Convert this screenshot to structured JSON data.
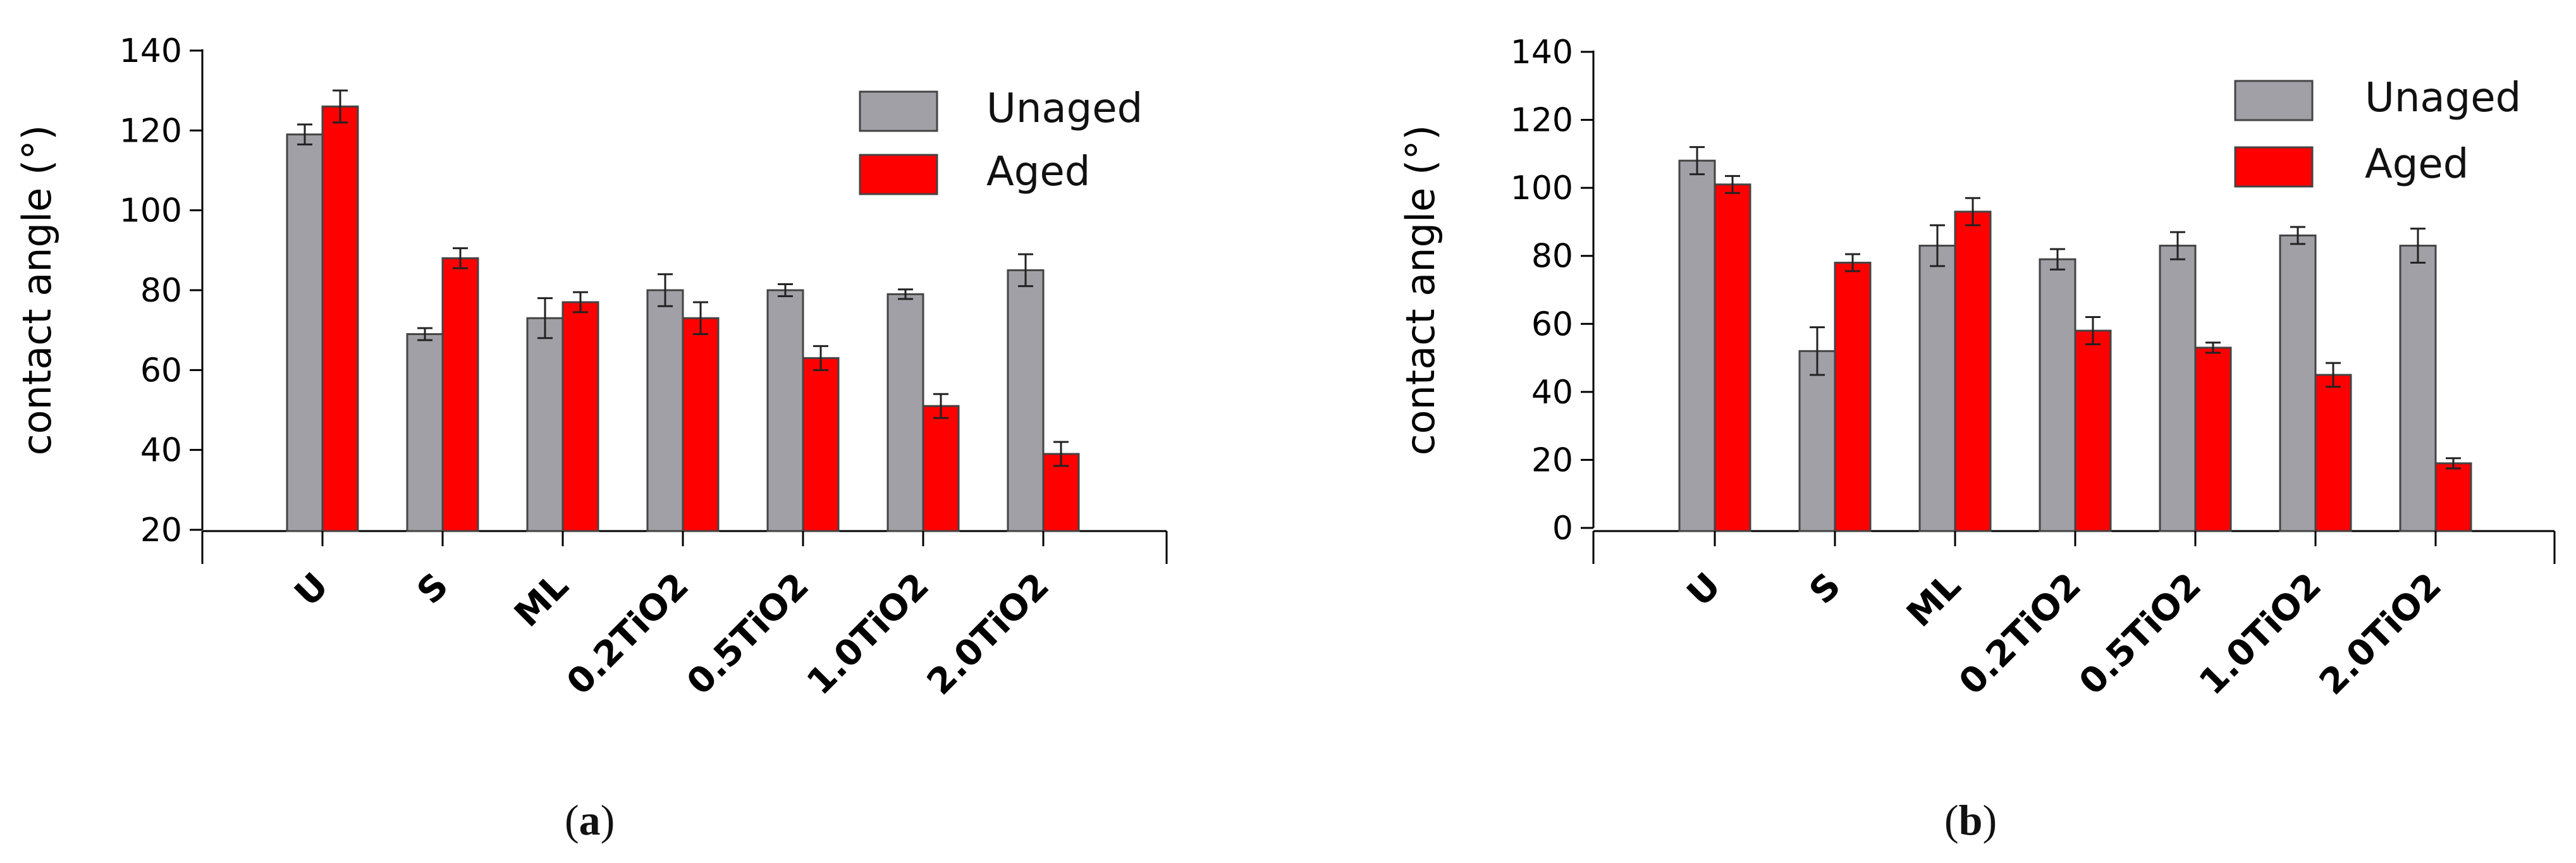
{
  "chart_data": [
    {
      "type": "bar",
      "panel": "(a)",
      "panel_letter": "a",
      "ylabel": "contact angle (°)",
      "ylim": [
        20,
        140
      ],
      "yticks": [
        20,
        40,
        60,
        80,
        100,
        120,
        140
      ],
      "categories": [
        "U",
        "S",
        "ML",
        "0.2TiO2",
        "0.5TiO2",
        "1.0TiO2",
        "2.0TiO2"
      ],
      "legend_position": "top-right",
      "series": [
        {
          "name": "Unaged",
          "color": "#a0a0a6",
          "values": [
            119,
            69,
            73,
            80,
            80,
            79,
            85
          ],
          "errors": [
            2.5,
            1.5,
            5,
            4,
            1.5,
            1.2,
            4
          ]
        },
        {
          "name": "Aged",
          "color": "#ff0000",
          "values": [
            126,
            88,
            77,
            73,
            63,
            51,
            39
          ],
          "errors": [
            4,
            2.5,
            2.5,
            4,
            3,
            3,
            3
          ]
        }
      ]
    },
    {
      "type": "bar",
      "panel": "(b)",
      "panel_letter": "b",
      "ylabel": "contact angle (°)",
      "ylim": [
        0,
        140
      ],
      "yticks": [
        0,
        20,
        40,
        60,
        80,
        100,
        120,
        140
      ],
      "categories": [
        "U",
        "S",
        "ML",
        "0.2TiO2",
        "0.5TiO2",
        "1.0TiO2",
        "2.0TiO2"
      ],
      "legend_position": "top-right",
      "series": [
        {
          "name": "Unaged",
          "color": "#a0a0a6",
          "values": [
            108,
            52,
            83,
            79,
            83,
            86,
            83
          ],
          "errors": [
            4,
            7,
            6,
            3,
            4,
            2.5,
            5
          ]
        },
        {
          "name": "Aged",
          "color": "#ff0000",
          "values": [
            101,
            78,
            93,
            58,
            53,
            45,
            19
          ],
          "errors": [
            2.5,
            2.5,
            4,
            4,
            1.5,
            3.5,
            1.5
          ]
        }
      ]
    }
  ]
}
